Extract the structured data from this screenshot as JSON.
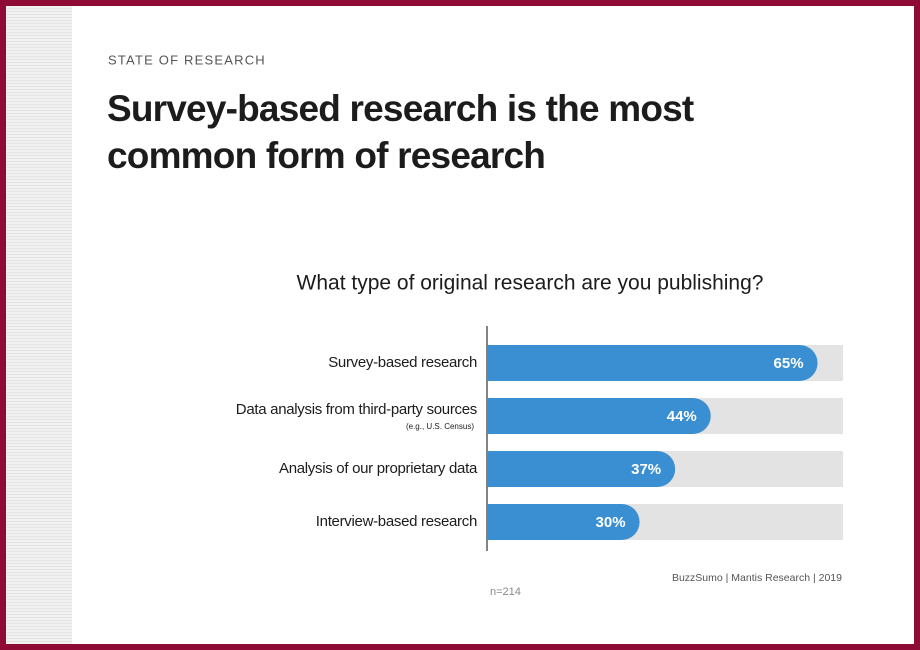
{
  "header": {
    "eyebrow": "STATE OF RESEARCH",
    "title_lines": [
      "Survey-based research is the most",
      "common form of research"
    ]
  },
  "chart_data": {
    "type": "bar",
    "orientation": "horizontal",
    "title": "What type of original research are you publishing?",
    "categories": [
      "Survey-based research",
      "Data analysis from third-party sources",
      "Analysis of our proprietary data",
      "Interview-based research"
    ],
    "category_notes": [
      null,
      "(e.g., U.S. Census)",
      null,
      null
    ],
    "values": [
      65,
      44,
      37,
      30
    ],
    "value_labels": [
      "65%",
      "44%",
      "37%",
      "30%"
    ],
    "color": "#3a8fd2",
    "track_color": "#e3e3e3",
    "xlim": [
      0,
      70
    ],
    "source": "BuzzSumo | Mantis Research | 2019",
    "note": "n=214"
  }
}
